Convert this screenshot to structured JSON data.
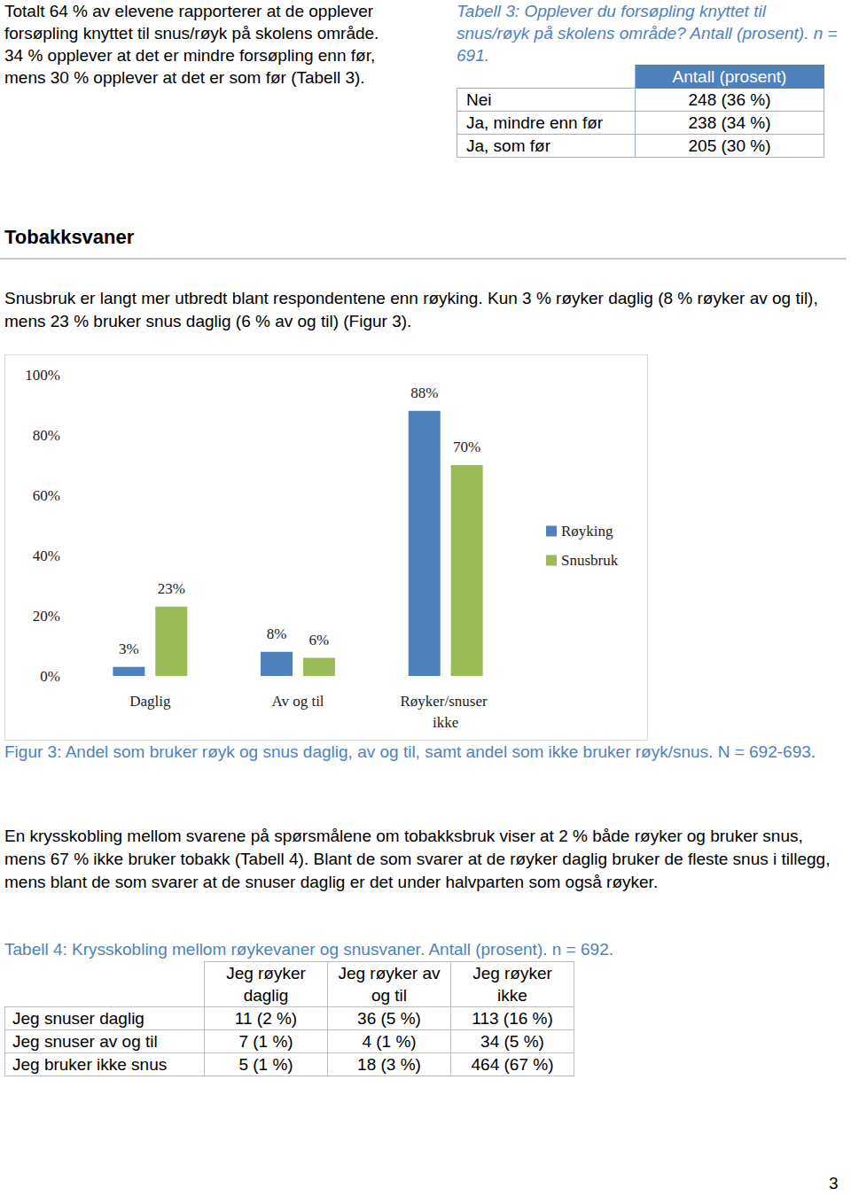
{
  "intro_text": "Totalt 64 % av elevene rapporterer at de opplever forsøpling knyttet til snus/røyk på skolens område. 34 % opplever at det er mindre forsøpling enn før, mens 30 % opplever at det er som før (Tabell 3).",
  "table3": {
    "caption": "Tabell 3: Opplever du forsøpling knyttet til snus/røyk på skolens område? Antall (prosent). n = 691.",
    "header": "Antall (prosent)",
    "rows": [
      [
        "Nei",
        "248 (36 %)"
      ],
      [
        "Ja, mindre enn før",
        "238 (34 %)"
      ],
      [
        "Ja, som før",
        "205 (30 %)"
      ]
    ]
  },
  "heading": "Tobakksvaner",
  "paragraph1": "Snusbruk er langt mer utbredt blant respondentene enn røyking. Kun 3 % røyker daglig (8 % røyker av og til), mens 23 % bruker snus daglig (6 % av og til) (Figur 3).",
  "chart_data": {
    "type": "bar",
    "categories": [
      "Daglig",
      "Av og til",
      "Røyker/snuser ikke"
    ],
    "series": [
      {
        "name": "Røyking",
        "color": "#4f81bd",
        "values": [
          3,
          8,
          88
        ],
        "value_labels": [
          "3%",
          "8%",
          "88%"
        ]
      },
      {
        "name": "Snusbruk",
        "color": "#9bbb59",
        "values": [
          23,
          6,
          70
        ],
        "value_labels": [
          "23%",
          "6%",
          "70%"
        ]
      }
    ],
    "ylim": [
      0,
      100
    ],
    "yticks": [
      {
        "value": 0,
        "label": "0%"
      },
      {
        "value": 20,
        "label": "20%"
      },
      {
        "value": 40,
        "label": "40%"
      },
      {
        "value": 60,
        "label": "60%"
      },
      {
        "value": 80,
        "label": "80%"
      },
      {
        "value": 100,
        "label": "100%"
      }
    ],
    "grid": false,
    "legend": "right",
    "data_labels": true
  },
  "figure_caption": "Figur 3: Andel som bruker røyk og snus daglig, av og til, samt andel som ikke bruker røyk/snus. N = 692-693.",
  "paragraph2": "En krysskobling mellom svarene på spørsmålene om tobakksbruk viser at 2 % både røyker og bruker snus, mens 67 % ikke bruker tobakk (Tabell 4). Blant de som svarer at de røyker daglig bruker de fleste snus i tillegg, mens blant de som svarer at de snuser daglig er det under halvparten som også røyker.",
  "table4": {
    "caption": "Tabell 4: Krysskobling mellom røykevaner og snusvaner. Antall (prosent). n = 692.",
    "columns": [
      "Jeg røyker daglig",
      "Jeg røyker av og til",
      "Jeg røyker ikke"
    ],
    "rows": [
      [
        "Jeg snuser daglig",
        "11 (2 %)",
        "36 (5 %)",
        "113 (16 %)"
      ],
      [
        "Jeg snuser av og til",
        "7 (1 %)",
        "4 (1 %)",
        "34 (5 %)"
      ],
      [
        "Jeg bruker ikke snus",
        "5 (1 %)",
        "18 (3 %)",
        "464 (67 %)"
      ]
    ]
  },
  "page_number": "3"
}
